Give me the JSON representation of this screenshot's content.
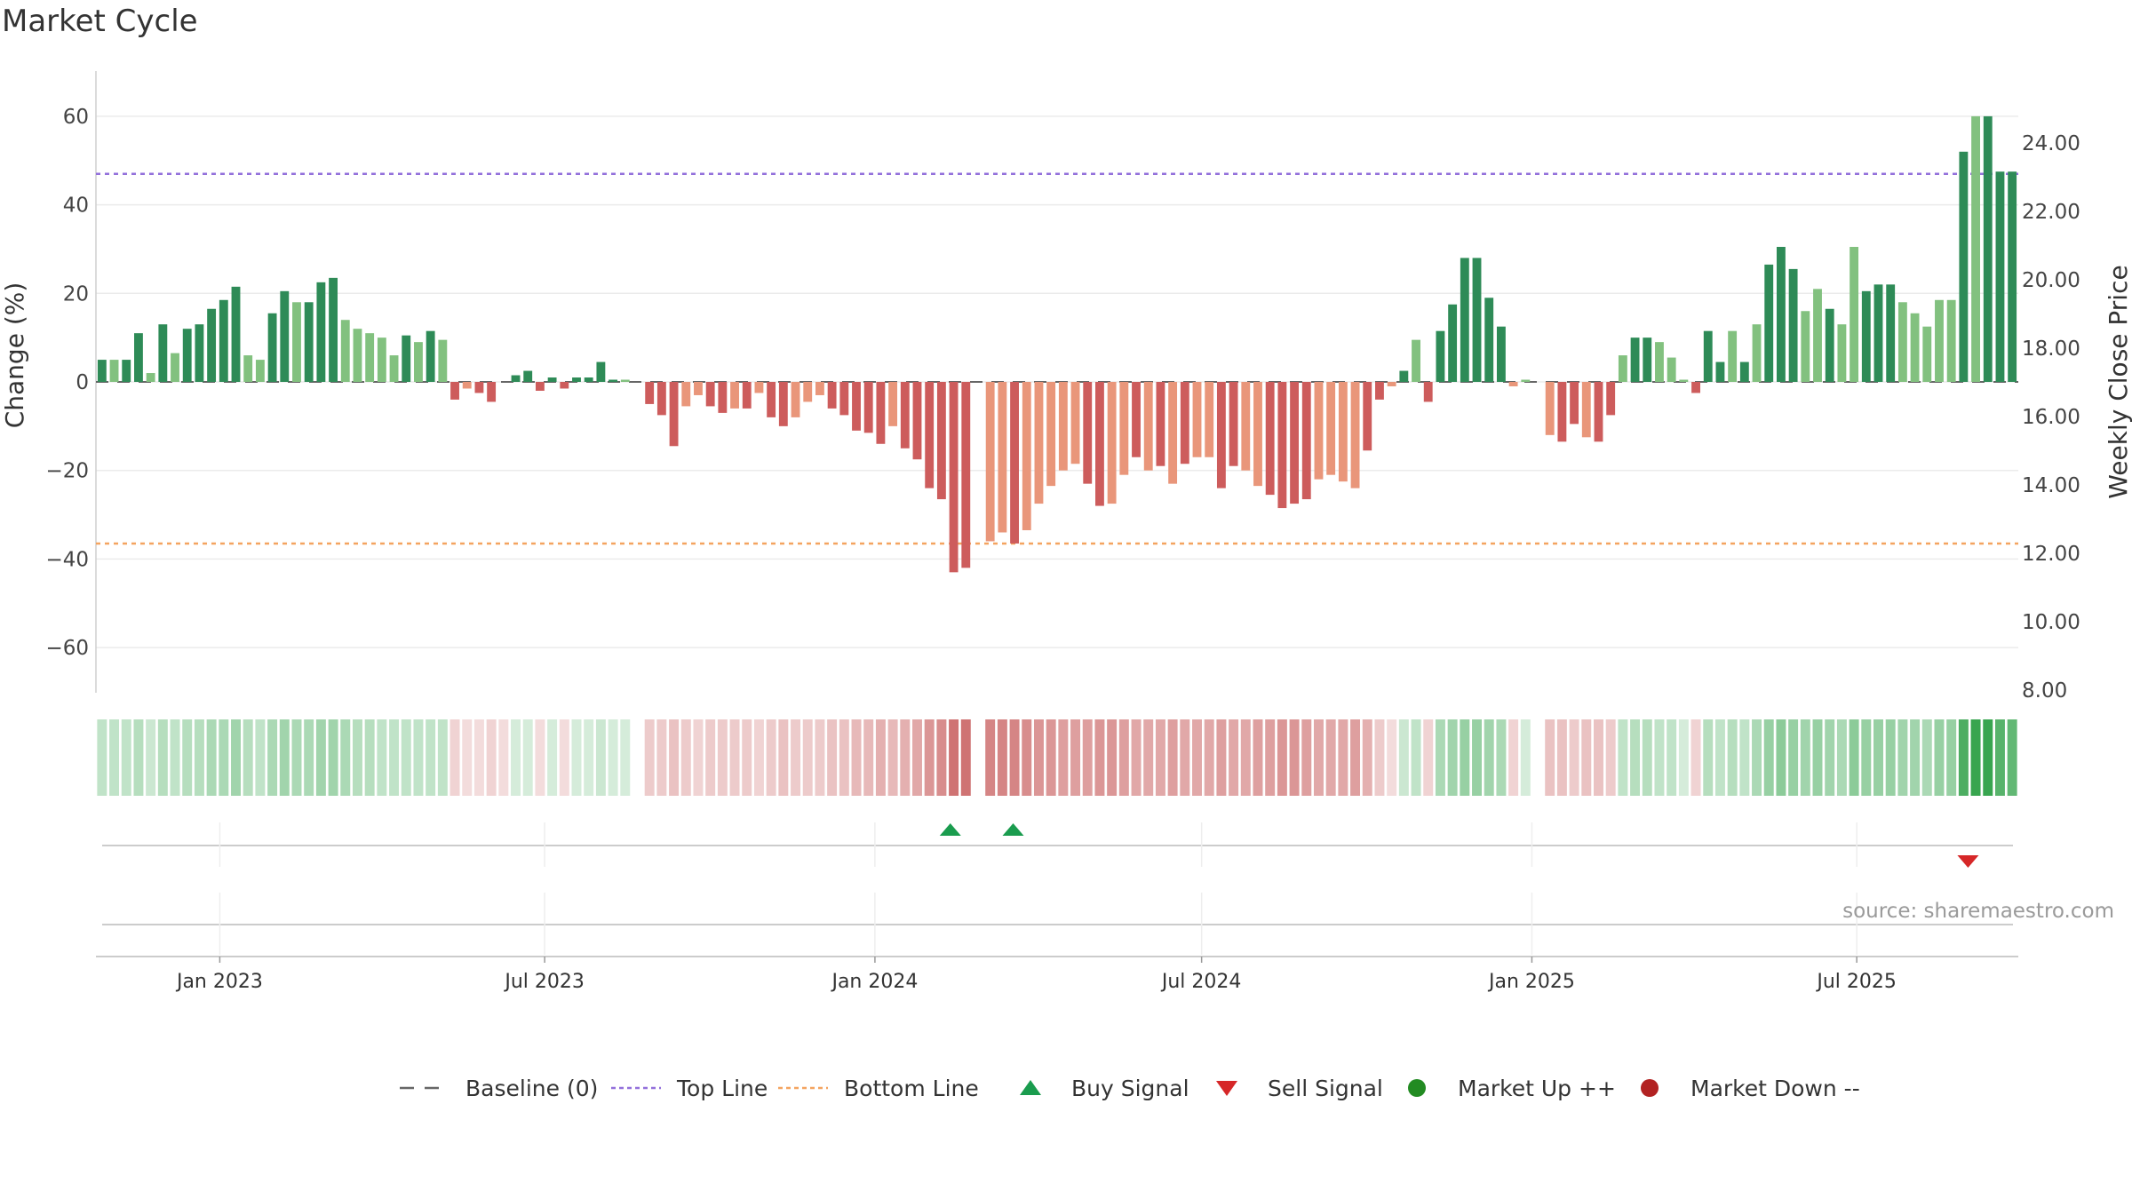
{
  "title": "Market Cycle",
  "source": "source: sharemaestro.com",
  "colors": {
    "dark_green": "#2e8b57",
    "light_green": "#82c17f",
    "dark_red": "#cd5c5c",
    "light_red": "#e9967a",
    "top_line": "#9370db",
    "bottom_line": "#f4a460",
    "buy": "#1a9c4e",
    "sell": "#d62728",
    "market_up": "#228b22",
    "market_down": "#b22222",
    "baseline": "#666666"
  },
  "chart_data": {
    "type": "bar",
    "title": "Market Cycle",
    "ylabel": "Change (%)",
    "ylabel_right": "Weekly Close Price",
    "ylim": [
      -65,
      65
    ],
    "yticks": [
      -60,
      -40,
      -20,
      0,
      20,
      40,
      60
    ],
    "ytick_labels": [
      "−60",
      "−40",
      "−20",
      "0",
      "20",
      "40",
      "60"
    ],
    "ylim_right": [
      8,
      25.3
    ],
    "yticks_right": [
      8,
      10,
      12,
      14,
      16,
      18,
      20,
      22,
      24
    ],
    "ytick_labels_right": [
      "8.00",
      "10.00",
      "12.00",
      "14.00",
      "16.00",
      "18.00",
      "20.00",
      "22.00",
      "24.00"
    ],
    "x_start": "2022-10-24",
    "x_end": "2025-09-29",
    "xticks": [
      "2023-01-01",
      "2023-07-01",
      "2024-01-01",
      "2024-07-01",
      "2025-01-01",
      "2025-07-01"
    ],
    "xtick_labels": [
      "Jan 2023",
      "Jul 2023",
      "Jan 2024",
      "Jul 2024",
      "Jan 2025",
      "Jul 2025"
    ],
    "top_line": 47,
    "bottom_line": -36.5,
    "grid": true,
    "values": [
      5,
      5,
      5,
      11,
      2,
      13,
      6.5,
      12,
      13,
      16.5,
      18.5,
      21.5,
      6,
      5,
      15.5,
      20.5,
      18,
      18,
      22.5,
      23.5,
      14,
      12,
      11,
      10,
      6,
      10.5,
      9,
      11.5,
      9.5,
      -4,
      -1.5,
      -2.5,
      -4.5,
      0,
      1.5,
      2.5,
      -2,
      1,
      -1.5,
      1,
      1,
      4.5,
      0.5,
      0.5,
      0,
      -5,
      -7.5,
      -14.5,
      -5.5,
      -3,
      -5.5,
      -7,
      -6,
      -6,
      -2.5,
      -8,
      -10,
      -8,
      -4.5,
      -3,
      -6,
      -7.5,
      -11,
      -11.5,
      -14,
      -10,
      -15,
      -17.5,
      -24,
      -26.5,
      -43,
      -42,
      0,
      -36,
      -34,
      -36.5,
      -33.5,
      -27.5,
      -23.5,
      -20,
      -18.5,
      -23,
      -28,
      -27.5,
      -21,
      -17,
      -20,
      -19,
      -23,
      -18.5,
      -17,
      -17,
      -24,
      -19,
      -20,
      -23.5,
      -25.5,
      -28.5,
      -27.5,
      -26.5,
      -22,
      -21,
      -22.5,
      -24,
      -15.5,
      -4,
      -1,
      2.5,
      9.5,
      -4.5,
      11.5,
      17.5,
      28,
      28,
      19,
      12.5,
      -1,
      0.5,
      0,
      -12,
      -13.5,
      -9.5,
      -12.5,
      -13.5,
      -7.5,
      6,
      10,
      10,
      9,
      5.5,
      0.5,
      -2.5,
      11.5,
      4.5,
      11.5,
      4.5,
      13,
      26.5,
      30.5,
      25.5,
      16,
      21,
      16.5,
      13,
      30.5,
      20.5,
      22,
      22,
      18,
      15.5,
      12.5,
      18.5,
      18.5,
      52,
      60,
      60,
      47.5,
      47.5
    ],
    "shade": [
      "d",
      "l",
      "d",
      "d",
      "l",
      "d",
      "l",
      "d",
      "d",
      "d",
      "d",
      "d",
      "l",
      "l",
      "d",
      "d",
      "l",
      "d",
      "d",
      "d",
      "l",
      "l",
      "l",
      "l",
      "l",
      "d",
      "l",
      "d",
      "l",
      "d",
      "l",
      "d",
      "d",
      "d",
      "d",
      "d",
      "d",
      "d",
      "d",
      "d",
      "d",
      "d",
      "d",
      "l",
      "d",
      "d",
      "d",
      "d",
      "l",
      "l",
      "d",
      "d",
      "l",
      "d",
      "l",
      "d",
      "d",
      "l",
      "l",
      "l",
      "d",
      "d",
      "d",
      "d",
      "d",
      "l",
      "d",
      "d",
      "d",
      "d",
      "d",
      "d",
      "d",
      "l",
      "l",
      "d",
      "l",
      "l",
      "l",
      "l",
      "l",
      "d",
      "d",
      "l",
      "l",
      "d",
      "l",
      "d",
      "l",
      "d",
      "l",
      "l",
      "d",
      "d",
      "l",
      "l",
      "d",
      "d",
      "d",
      "d",
      "l",
      "l",
      "l",
      "l",
      "d",
      "d",
      "l",
      "d",
      "l",
      "d",
      "d",
      "d",
      "d",
      "d",
      "d",
      "d",
      "l",
      "l",
      "d",
      "l",
      "d",
      "d",
      "l",
      "d",
      "d",
      "l",
      "d",
      "d",
      "l",
      "l",
      "l",
      "d",
      "d",
      "d",
      "l",
      "d",
      "l",
      "d",
      "d",
      "d",
      "l",
      "l",
      "d",
      "l",
      "l",
      "d",
      "d",
      "d",
      "l",
      "l",
      "l",
      "l",
      "l",
      "d",
      "l",
      "d",
      "d",
      "d",
      "d",
      "l",
      "l"
    ],
    "heat": [
      0.3,
      0.3,
      0.3,
      0.35,
      0.25,
      0.35,
      0.3,
      0.35,
      0.35,
      0.4,
      0.4,
      0.45,
      0.35,
      0.3,
      0.4,
      0.45,
      0.4,
      0.4,
      0.45,
      0.45,
      0.4,
      0.35,
      0.35,
      0.3,
      0.3,
      0.3,
      0.3,
      0.3,
      0.3,
      -0.25,
      -0.2,
      -0.2,
      -0.25,
      -0.2,
      0.2,
      0.2,
      -0.2,
      0.2,
      -0.2,
      0.2,
      0.2,
      0.25,
      0.2,
      0.2,
      0,
      -0.3,
      -0.3,
      -0.35,
      -0.3,
      -0.25,
      -0.3,
      -0.3,
      -0.3,
      -0.3,
      -0.25,
      -0.3,
      -0.35,
      -0.3,
      -0.3,
      -0.3,
      -0.35,
      -0.35,
      -0.4,
      -0.4,
      -0.45,
      -0.4,
      -0.45,
      -0.5,
      -0.6,
      -0.65,
      -0.8,
      -0.8,
      0,
      -0.7,
      -0.7,
      -0.7,
      -0.65,
      -0.6,
      -0.6,
      -0.55,
      -0.55,
      -0.55,
      -0.6,
      -0.6,
      -0.55,
      -0.5,
      -0.5,
      -0.5,
      -0.55,
      -0.5,
      -0.5,
      -0.5,
      -0.55,
      -0.5,
      -0.5,
      -0.55,
      -0.55,
      -0.6,
      -0.6,
      -0.55,
      -0.5,
      -0.5,
      -0.5,
      -0.55,
      -0.45,
      -0.3,
      -0.2,
      0.25,
      0.3,
      -0.25,
      0.4,
      0.45,
      0.5,
      0.5,
      0.45,
      0.4,
      -0.25,
      0.2,
      0,
      -0.35,
      -0.35,
      -0.3,
      -0.35,
      -0.35,
      -0.3,
      0.3,
      0.35,
      0.35,
      0.3,
      0.3,
      0.2,
      -0.25,
      0.35,
      0.3,
      0.35,
      0.3,
      0.4,
      0.5,
      0.55,
      0.5,
      0.45,
      0.5,
      0.45,
      0.4,
      0.55,
      0.5,
      0.5,
      0.5,
      0.45,
      0.45,
      0.4,
      0.5,
      0.5,
      0.85,
      0.95,
      0.95,
      0.8,
      0.75
    ],
    "buy_signals": [
      "2024-02-12",
      "2024-03-18"
    ],
    "sell_signals": [
      "2025-09-01"
    ],
    "legend": {
      "position": "bottom",
      "items": [
        {
          "label": "Baseline (0)",
          "kind": "dash-long",
          "color": "#666666"
        },
        {
          "label": "Top Line",
          "kind": "dash-short",
          "color": "#9370db"
        },
        {
          "label": "Bottom Line",
          "kind": "dash-short",
          "color": "#f4a460"
        },
        {
          "label": "Buy Signal",
          "kind": "tri-up",
          "color": "#1a9c4e"
        },
        {
          "label": "Sell Signal",
          "kind": "tri-down",
          "color": "#d62728"
        },
        {
          "label": "Market Up ++",
          "kind": "dot",
          "color": "#228b22"
        },
        {
          "label": "Market Down --",
          "kind": "dot",
          "color": "#b22222"
        }
      ]
    }
  }
}
